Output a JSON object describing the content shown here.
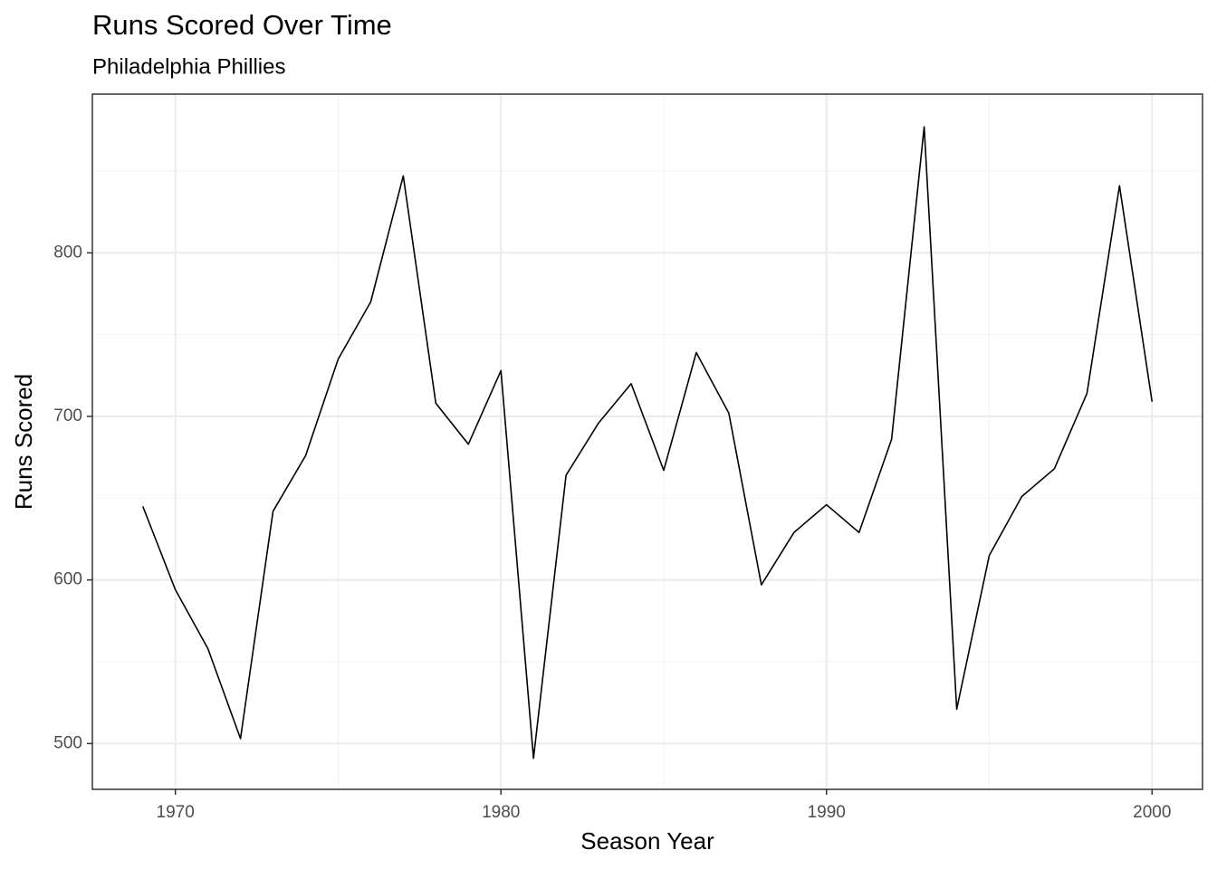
{
  "chart_data": {
    "type": "line",
    "title": "Runs Scored Over Time",
    "subtitle": "Philadelphia Phillies",
    "x_label": "Season Year",
    "y_label": "Runs Scored",
    "x": [
      1969,
      1970,
      1971,
      1972,
      1973,
      1974,
      1975,
      1976,
      1977,
      1978,
      1979,
      1980,
      1981,
      1982,
      1983,
      1984,
      1985,
      1986,
      1987,
      1988,
      1989,
      1990,
      1991,
      1992,
      1993,
      1994,
      1995,
      1996,
      1997,
      1998,
      1999,
      2000
    ],
    "values": [
      645,
      594,
      558,
      503,
      642,
      676,
      735,
      770,
      847,
      708,
      683,
      728,
      491,
      664,
      696,
      720,
      667,
      739,
      702,
      597,
      629,
      646,
      629,
      686,
      877,
      521,
      615,
      651,
      668,
      714,
      841,
      709
    ],
    "color": "#000000",
    "xlim": [
      1967.45,
      2001.55
    ],
    "xticks": [
      1970,
      1980,
      1990,
      2000
    ],
    "ylim": [
      472,
      897
    ],
    "yticks": [
      500,
      600,
      700,
      800
    ],
    "grid": true
  }
}
